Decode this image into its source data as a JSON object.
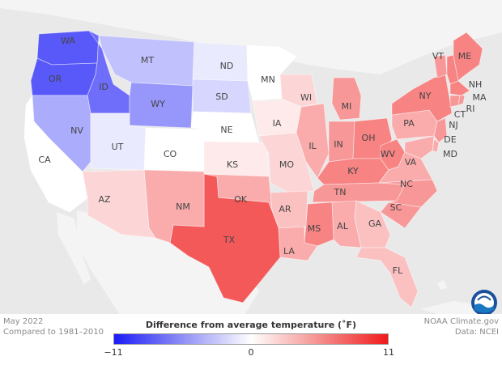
{
  "legend": {
    "title": "Difference from average temperature (˚F)",
    "min_label": "−11",
    "mid_label": "0",
    "max_label": "11",
    "min_value": -11,
    "max_value": 11,
    "color_low": "#1b1bf7",
    "color_mid": "#ffffff",
    "color_high": "#f01b1b"
  },
  "meta": {
    "date": "May 2022",
    "baseline": "Compared to 1981–2010",
    "credit": "NOAA Climate.gov",
    "source": "Data: NCEI"
  },
  "logo": {
    "icon": "noaa-logo-icon",
    "text": "NOAA"
  },
  "states": [
    {
      "abbr": "WA",
      "anomaly": -8
    },
    {
      "abbr": "OR",
      "anomaly": -8
    },
    {
      "abbr": "ID",
      "anomaly": -7
    },
    {
      "abbr": "MT",
      "anomaly": -3
    },
    {
      "abbr": "WY",
      "anomaly": -5
    },
    {
      "abbr": "NV",
      "anomaly": -4
    },
    {
      "abbr": "UT",
      "anomaly": -1
    },
    {
      "abbr": "CO",
      "anomaly": 0
    },
    {
      "abbr": "CA",
      "anomaly": 0
    },
    {
      "abbr": "ND",
      "anomaly": -1
    },
    {
      "abbr": "SD",
      "anomaly": -2
    },
    {
      "abbr": "NE",
      "anomaly": 0
    },
    {
      "abbr": "KS",
      "anomaly": 1
    },
    {
      "abbr": "MN",
      "anomaly": 0
    },
    {
      "abbr": "IA",
      "anomaly": 1
    },
    {
      "abbr": "MO",
      "anomaly": 2
    },
    {
      "abbr": "WI",
      "anomaly": 2
    },
    {
      "abbr": "IL",
      "anomaly": 4
    },
    {
      "abbr": "MI",
      "anomaly": 5
    },
    {
      "abbr": "IN",
      "anomaly": 5
    },
    {
      "abbr": "OH",
      "anomaly": 6
    },
    {
      "abbr": "KY",
      "anomaly": 6
    },
    {
      "abbr": "TN",
      "anomaly": 5
    },
    {
      "abbr": "WV",
      "anomaly": 6
    },
    {
      "abbr": "VA",
      "anomaly": 4
    },
    {
      "abbr": "NC",
      "anomaly": 5
    },
    {
      "abbr": "SC",
      "anomaly": 5
    },
    {
      "abbr": "GA",
      "anomaly": 3
    },
    {
      "abbr": "AL",
      "anomaly": 4
    },
    {
      "abbr": "MS",
      "anomaly": 6
    },
    {
      "abbr": "AR",
      "anomaly": 3
    },
    {
      "abbr": "LA",
      "anomaly": 4
    },
    {
      "abbr": "TX",
      "anomaly": 8
    },
    {
      "abbr": "OK",
      "anomaly": 4
    },
    {
      "abbr": "NM",
      "anomaly": 4
    },
    {
      "abbr": "AZ",
      "anomaly": 2
    },
    {
      "abbr": "FL",
      "anomaly": 3
    },
    {
      "abbr": "PA",
      "anomaly": 4
    },
    {
      "abbr": "NY",
      "anomaly": 6
    },
    {
      "abbr": "VT",
      "anomaly": 5
    },
    {
      "abbr": "NH",
      "anomaly": 6
    },
    {
      "abbr": "ME",
      "anomaly": 6
    },
    {
      "abbr": "MA",
      "anomaly": 6
    },
    {
      "abbr": "CT",
      "anomaly": 5
    },
    {
      "abbr": "RI",
      "anomaly": 5
    },
    {
      "abbr": "NJ",
      "anomaly": 5
    },
    {
      "abbr": "DE",
      "anomaly": 4
    },
    {
      "abbr": "MD",
      "anomaly": 4
    }
  ]
}
